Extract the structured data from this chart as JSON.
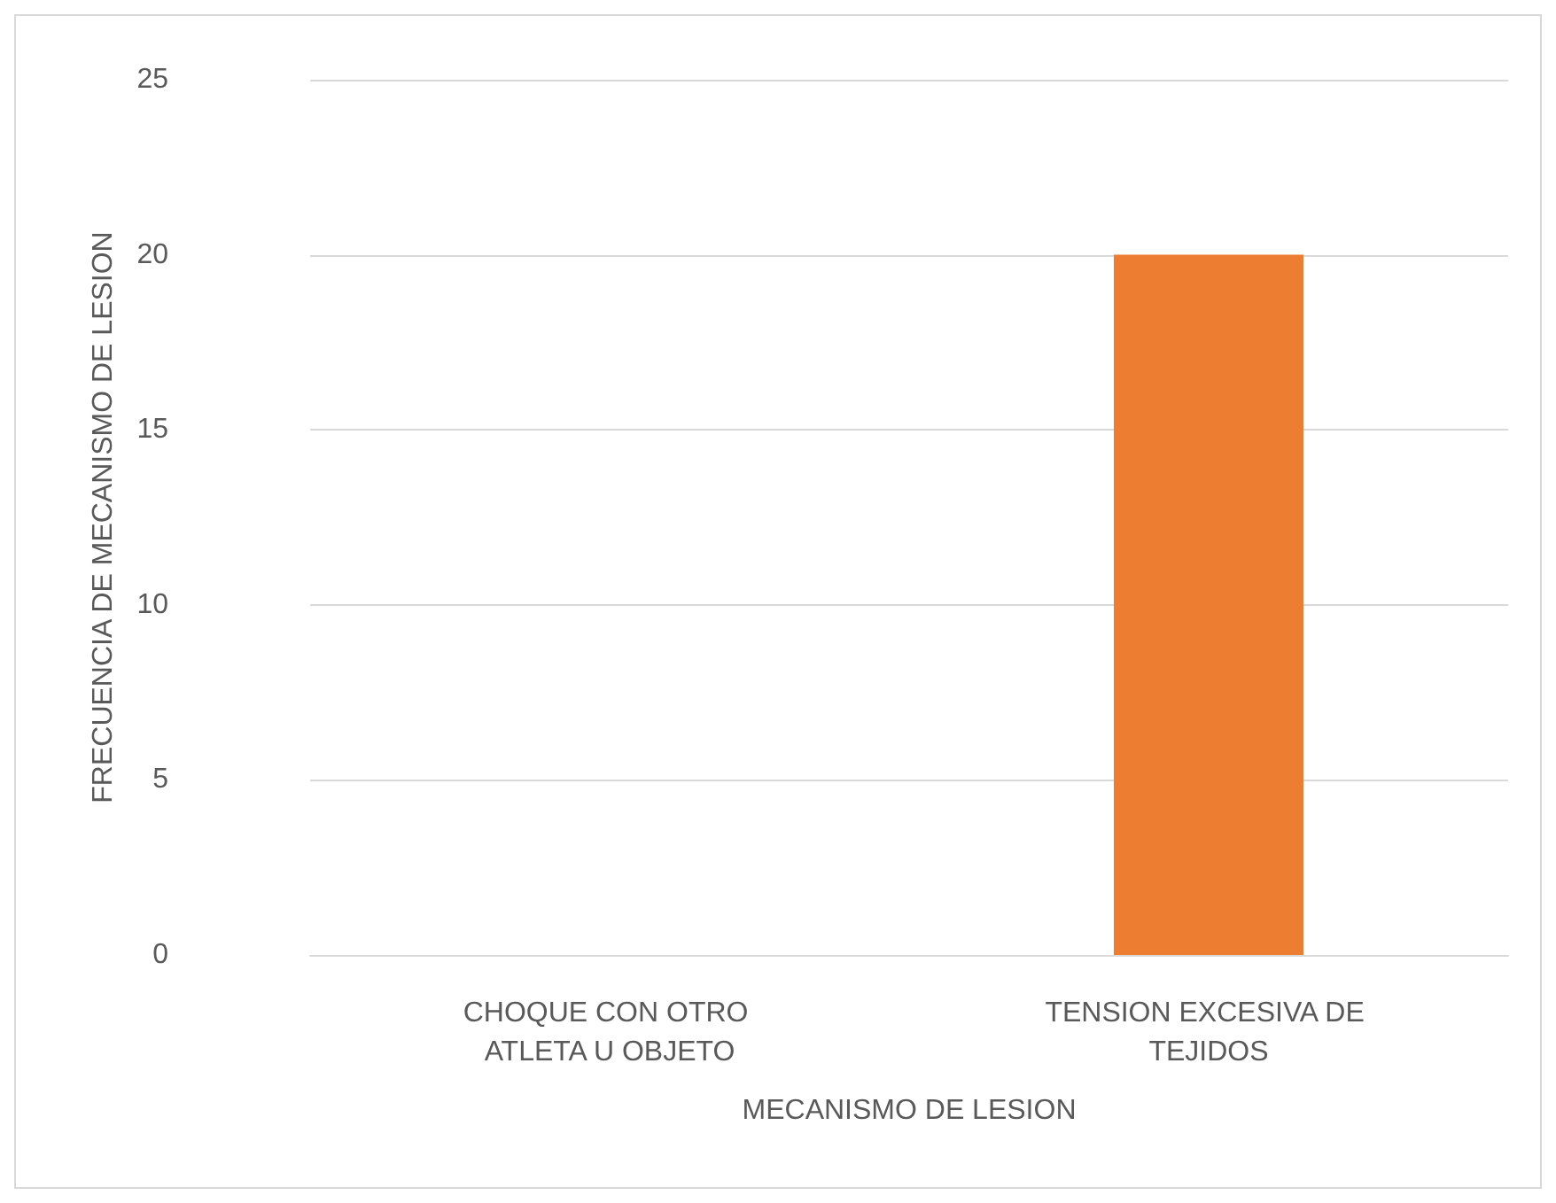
{
  "chart_data": {
    "type": "bar",
    "xlabel": "MECANISMO DE LESION",
    "ylabel": "FRECUENCIA DE MECANISMO DE LESION",
    "categories": [
      "CHOQUE CON OTRO ATLETA U OBJETO",
      "TENSION EXCESIVA DE TEJIDOS"
    ],
    "values": [
      0,
      20
    ],
    "color": "#ed7d31",
    "ylim": [
      0,
      25
    ],
    "yticks": [
      0,
      5,
      10,
      15,
      20,
      25
    ],
    "grid": "y"
  }
}
